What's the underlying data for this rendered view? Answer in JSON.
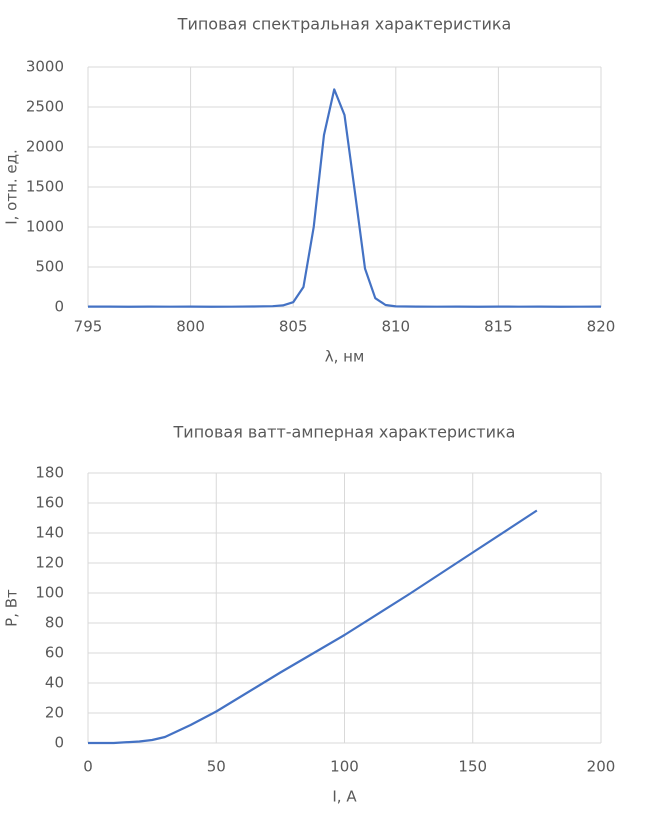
{
  "chart_data": [
    {
      "type": "line",
      "title": "Типовая спектральная характеристика",
      "x_label": "λ, нм",
      "y_label": "I, отн. ед.",
      "x": [
        795,
        796,
        797,
        798,
        799,
        800,
        801,
        802,
        803,
        804,
        804.5,
        805,
        805.5,
        806,
        806.5,
        807,
        807.5,
        808,
        808.5,
        809,
        809.5,
        810,
        811,
        812,
        813,
        814,
        815,
        816,
        817,
        818,
        819,
        820
      ],
      "series": [
        {
          "name": "I",
          "color": "#4472c4",
          "values": [
            5,
            5,
            3,
            5,
            4,
            5,
            3,
            4,
            6,
            10,
            20,
            60,
            250,
            1000,
            2150,
            2720,
            2400,
            1450,
            480,
            110,
            25,
            8,
            5,
            4,
            5,
            3,
            5,
            4,
            5,
            3,
            4,
            5
          ]
        }
      ],
      "xlim": [
        795,
        820
      ],
      "xticks": [
        795,
        800,
        805,
        810,
        815,
        820
      ],
      "ylim": [
        0,
        3000
      ],
      "yticks": [
        0,
        500,
        1000,
        1500,
        2000,
        2500,
        3000
      ],
      "grid": true
    },
    {
      "type": "line",
      "title": "Типовая ватт-амперная характеристика",
      "x_label": "I, А",
      "y_label": "P, Вт",
      "x": [
        0,
        10,
        20,
        25,
        30,
        35,
        40,
        50,
        75,
        100,
        125,
        150,
        175
      ],
      "series": [
        {
          "name": "P",
          "color": "#4472c4",
          "values": [
            0,
            0,
            1,
            2,
            4,
            8,
            12,
            21,
            47,
            72,
            99,
            127,
            155
          ]
        }
      ],
      "xlim": [
        0,
        200
      ],
      "xticks": [
        0,
        50,
        100,
        150,
        200
      ],
      "ylim": [
        0,
        180
      ],
      "yticks": [
        0,
        20,
        40,
        60,
        80,
        100,
        120,
        140,
        160,
        180
      ],
      "grid": true
    }
  ]
}
